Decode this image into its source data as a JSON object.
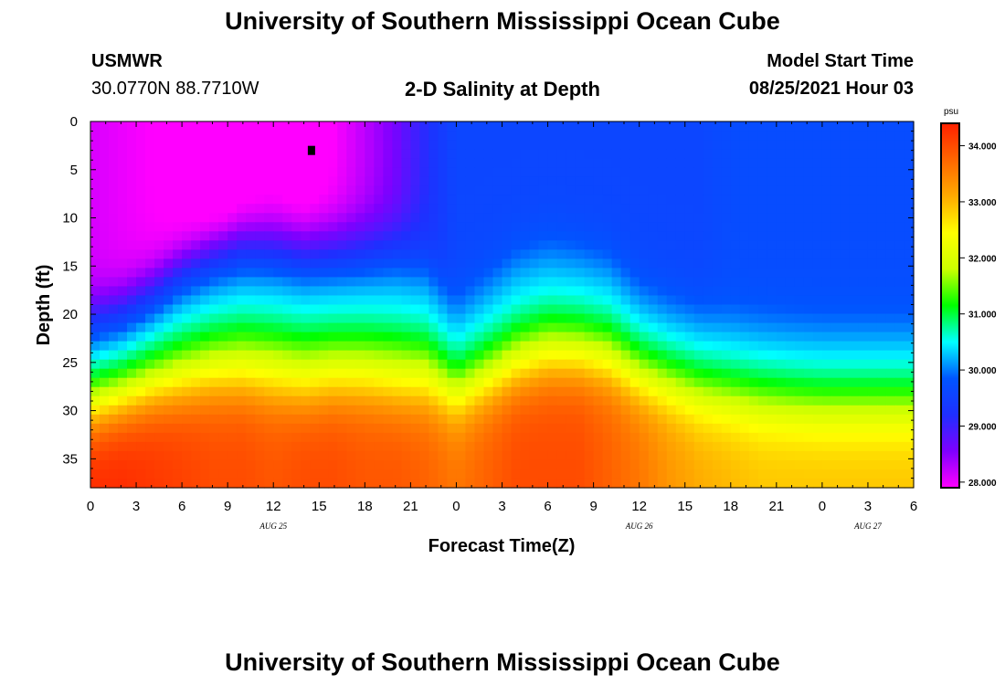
{
  "header": {
    "title_top": "University of Southern Mississippi Ocean Cube",
    "title_bottom": "University of Southern Mississippi Ocean Cube",
    "station": "USMWR",
    "coords": "30.0770N  88.7710W",
    "plot_title": "2-D Salinity at Depth",
    "model_label": "Model Start Time",
    "model_time": "08/25/2021 Hour 03"
  },
  "colors": {
    "salinity_stops": [
      "#ff00ff",
      "#7f00ff",
      "#1f2fff",
      "#0055ff",
      "#00ffff",
      "#00ff00",
      "#ccff00",
      "#ffff00",
      "#ffaa00",
      "#ff6600",
      "#ff2000"
    ]
  },
  "chart_data": {
    "type": "heatmap",
    "title": "2-D Salinity at Depth",
    "xlabel": "Forecast Time(Z)",
    "ylabel": "Depth (ft)",
    "x_tick_labels": [
      "0",
      "3",
      "6",
      "9",
      "12",
      "15",
      "18",
      "21",
      "0",
      "3",
      "6",
      "9",
      "12",
      "15",
      "18",
      "21",
      "0",
      "3",
      "6"
    ],
    "x_date_labels": [
      {
        "label": "AUG 25",
        "hour": 12
      },
      {
        "label": "AUG 26",
        "hour": 36
      },
      {
        "label": "AUG 27",
        "hour": 51
      }
    ],
    "x_range_hours": [
      0,
      54
    ],
    "y_tick_labels": [
      "0",
      "5",
      "10",
      "15",
      "20",
      "25",
      "30",
      "35"
    ],
    "y_range_ft": [
      0,
      38
    ],
    "colorbar": {
      "unit": "psu",
      "range": [
        27.9,
        34.4
      ],
      "labels": [
        "34.000",
        "33.000",
        "32.000",
        "31.000",
        "30.000",
        "29.000",
        "28.000"
      ],
      "values": [
        34,
        33,
        32,
        31,
        30,
        29,
        28
      ]
    },
    "marker": {
      "hour": 14.5,
      "depth_ft": 3
    },
    "fields": {
      "halocline_hours": [
        0,
        2,
        4,
        6,
        8,
        10,
        12,
        14,
        16,
        18,
        20,
        22,
        24,
        26,
        28,
        30,
        32,
        34,
        36,
        38,
        40,
        42,
        44,
        46,
        48,
        50,
        52,
        54
      ],
      "halocline_depth_ft": [
        24.5,
        23.5,
        21.5,
        19,
        17.5,
        16.5,
        16.5,
        17,
        17,
        17,
        17,
        18,
        22.5,
        20,
        17.5,
        16.5,
        17,
        18,
        21,
        22.5,
        23.5,
        24,
        24.5,
        24.8,
        25,
        25,
        25,
        25
      ],
      "deep_front_depth_ft": [
        30.5,
        29.5,
        28.5,
        28,
        27.5,
        27.5,
        28,
        28.5,
        28,
        28,
        28.5,
        28.5,
        29.5,
        28,
        26.5,
        25.5,
        25.5,
        26,
        27.5,
        28.5,
        29.5,
        30,
        30.5,
        30.8,
        31,
        31,
        31,
        31
      ],
      "fresh_patch_depth_ft": [
        19,
        18,
        16,
        14,
        12.5,
        11,
        10,
        10,
        10,
        10,
        10,
        9,
        0,
        0,
        0,
        0,
        0,
        0,
        0,
        0,
        0,
        0,
        0,
        0,
        0,
        0,
        0,
        0
      ],
      "surface_salinity_psu": [
        28.7,
        28.6,
        28.5,
        28.4,
        28.3,
        28.2,
        28.1,
        28.0,
        28.2,
        28.5,
        28.8,
        29.2,
        29.6,
        29.6,
        29.6,
        29.6,
        29.6,
        29.6,
        29.6,
        29.6,
        29.6,
        29.7,
        29.7,
        29.7,
        29.7,
        29.7,
        29.7,
        29.7
      ],
      "bottom_salinity_psu": [
        34.3,
        34.3,
        34.2,
        34.1,
        34.0,
        34.0,
        33.9,
        34.0,
        34.0,
        33.9,
        33.9,
        33.8,
        33.6,
        33.8,
        34.0,
        34.0,
        34.0,
        33.8,
        33.6,
        33.3,
        33.1,
        33.0,
        32.9,
        32.9,
        32.9,
        32.9,
        32.9,
        32.9
      ]
    }
  }
}
